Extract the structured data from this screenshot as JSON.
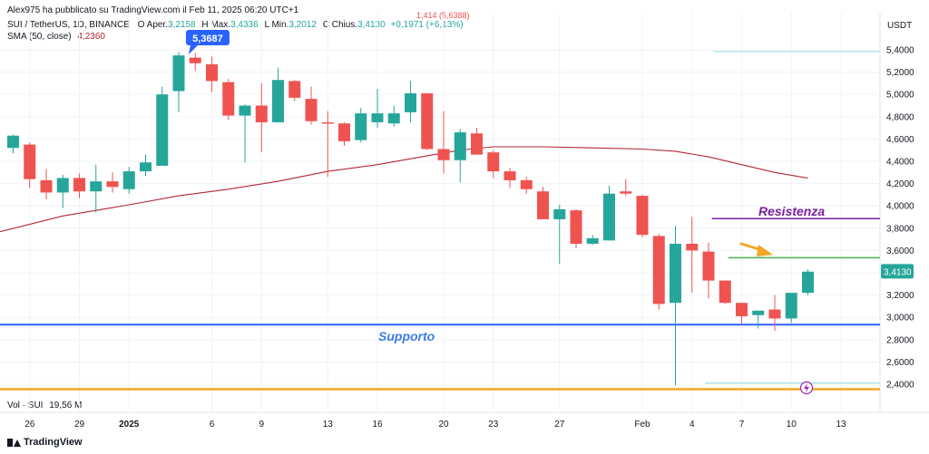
{
  "publisher_line": "Alex975 ha pubblicato su TradingView.com il Feb 11, 2025 06:20 UTC+1",
  "symbol_line": "SUI / TetherUS, 1D, BINANCE",
  "ohlc": {
    "open_label": "O",
    "open_name": "Aper.",
    "open": "3,2158",
    "high_label": "H",
    "high_name": "Max.",
    "high": "3,4336",
    "low_label": "L",
    "low_name": "Min.",
    "low": "3,2012",
    "close_label": "C",
    "close_name": "Chius.",
    "close": "3,4130",
    "change": "+0,1971 (+6,13%)"
  },
  "top_cut_text": "1,414 (5,6388)",
  "sma_label": "SMA (50, close)",
  "sma_value": "4,2360",
  "vol_label": "Vol · SUI",
  "vol_value": "19,56 M",
  "currency": "USDT",
  "logo_text": "TradingView",
  "colors": {
    "up": "#26a69a",
    "down": "#ef5350",
    "sma": "#b22833",
    "support": "#2962ff",
    "resistance": "#7b1fa2",
    "green_line": "#4caf50",
    "orange_line": "#f5a623",
    "cyan_line": "#a0e0e0"
  },
  "annotations": {
    "high_badge": "5,3687",
    "last_price_badge": "3,4130",
    "support_text": "Supporto",
    "resistance_text": "Resistenza",
    "arrow_icon": "orange-arrow",
    "lightning_icon": "lightning-icon"
  },
  "chart_data": {
    "type": "candlestick",
    "ylim": [
      2.32,
      5.72
    ],
    "y_ticks": [
      "5,4000",
      "5,2000",
      "5,0000",
      "4,8000",
      "4,6000",
      "4,4000",
      "4,2000",
      "4,0000",
      "3,8000",
      "3,6000",
      "3,4000",
      "3,2000",
      "3,0000",
      "2,8000",
      "2,6000",
      "2,4000"
    ],
    "y_tick_values": [
      5.4,
      5.2,
      5.0,
      4.8,
      4.6,
      4.4,
      4.2,
      4.0,
      3.8,
      3.6,
      3.4,
      3.2,
      3.0,
      2.8,
      2.6,
      2.4
    ],
    "x_ticks": [
      {
        "label": "26",
        "idx": 1
      },
      {
        "label": "29",
        "idx": 4
      },
      {
        "label": "2025",
        "idx": 7
      },
      {
        "label": "6",
        "idx": 12
      },
      {
        "label": "9",
        "idx": 15
      },
      {
        "label": "13",
        "idx": 19
      },
      {
        "label": "16",
        "idx": 22
      },
      {
        "label": "20",
        "idx": 26
      },
      {
        "label": "23",
        "idx": 29
      },
      {
        "label": "27",
        "idx": 33
      },
      {
        "label": "Feb",
        "idx": 38
      },
      {
        "label": "4",
        "idx": 41
      },
      {
        "label": "7",
        "idx": 44
      },
      {
        "label": "10",
        "idx": 47
      },
      {
        "label": "13",
        "idx": 50
      }
    ],
    "candles": [
      {
        "o": 4.52,
        "h": 4.64,
        "l": 4.47,
        "c": 4.63
      },
      {
        "o": 4.55,
        "h": 4.57,
        "l": 4.16,
        "c": 4.24
      },
      {
        "o": 4.23,
        "h": 4.33,
        "l": 4.06,
        "c": 4.12
      },
      {
        "o": 4.12,
        "h": 4.28,
        "l": 3.98,
        "c": 4.25
      },
      {
        "o": 4.25,
        "h": 4.29,
        "l": 4.07,
        "c": 4.13
      },
      {
        "o": 4.13,
        "h": 4.37,
        "l": 3.94,
        "c": 4.22
      },
      {
        "o": 4.22,
        "h": 4.3,
        "l": 4.12,
        "c": 4.17
      },
      {
        "o": 4.15,
        "h": 4.35,
        "l": 4.11,
        "c": 4.31
      },
      {
        "o": 4.31,
        "h": 4.46,
        "l": 4.27,
        "c": 4.39
      },
      {
        "o": 4.36,
        "h": 5.07,
        "l": 4.36,
        "c": 5.0
      },
      {
        "o": 5.03,
        "h": 5.38,
        "l": 4.84,
        "c": 5.35
      },
      {
        "o": 5.33,
        "h": 5.37,
        "l": 5.21,
        "c": 5.28
      },
      {
        "o": 5.27,
        "h": 5.34,
        "l": 5.02,
        "c": 5.12
      },
      {
        "o": 5.11,
        "h": 5.14,
        "l": 4.77,
        "c": 4.81
      },
      {
        "o": 4.81,
        "h": 4.91,
        "l": 4.39,
        "c": 4.9
      },
      {
        "o": 4.9,
        "h": 5.1,
        "l": 4.48,
        "c": 4.75
      },
      {
        "o": 4.75,
        "h": 5.24,
        "l": 4.75,
        "c": 5.13
      },
      {
        "o": 5.12,
        "h": 5.13,
        "l": 4.94,
        "c": 4.97
      },
      {
        "o": 4.96,
        "h": 5.07,
        "l": 4.73,
        "c": 4.76
      },
      {
        "o": 4.75,
        "h": 4.85,
        "l": 4.26,
        "c": 4.74
      },
      {
        "o": 4.74,
        "h": 4.75,
        "l": 4.54,
        "c": 4.58
      },
      {
        "o": 4.59,
        "h": 4.88,
        "l": 4.57,
        "c": 4.83
      },
      {
        "o": 4.75,
        "h": 5.05,
        "l": 4.7,
        "c": 4.83
      },
      {
        "o": 4.74,
        "h": 4.9,
        "l": 4.71,
        "c": 4.83
      },
      {
        "o": 4.84,
        "h": 5.12,
        "l": 4.75,
        "c": 5.01
      },
      {
        "o": 5.01,
        "h": 5.01,
        "l": 4.5,
        "c": 4.51
      },
      {
        "o": 4.51,
        "h": 4.85,
        "l": 4.29,
        "c": 4.41
      },
      {
        "o": 4.41,
        "h": 4.69,
        "l": 4.21,
        "c": 4.66
      },
      {
        "o": 4.65,
        "h": 4.7,
        "l": 4.46,
        "c": 4.46
      },
      {
        "o": 4.48,
        "h": 4.5,
        "l": 4.25,
        "c": 4.31
      },
      {
        "o": 4.31,
        "h": 4.34,
        "l": 4.16,
        "c": 4.23
      },
      {
        "o": 4.23,
        "h": 4.26,
        "l": 4.11,
        "c": 4.15
      },
      {
        "o": 4.13,
        "h": 4.17,
        "l": 3.88,
        "c": 3.88
      },
      {
        "o": 3.88,
        "h": 4.01,
        "l": 3.48,
        "c": 3.97
      },
      {
        "o": 3.96,
        "h": 3.97,
        "l": 3.62,
        "c": 3.66
      },
      {
        "o": 3.66,
        "h": 3.74,
        "l": 3.65,
        "c": 3.71
      },
      {
        "o": 3.69,
        "h": 4.18,
        "l": 3.69,
        "c": 4.11
      },
      {
        "o": 4.13,
        "h": 4.24,
        "l": 4.09,
        "c": 4.11
      },
      {
        "o": 4.09,
        "h": 4.1,
        "l": 3.72,
        "c": 3.74
      },
      {
        "o": 3.73,
        "h": 3.75,
        "l": 3.07,
        "c": 3.12
      },
      {
        "o": 3.13,
        "h": 3.82,
        "l": 2.39,
        "c": 3.66
      },
      {
        "o": 3.66,
        "h": 3.9,
        "l": 3.22,
        "c": 3.6
      },
      {
        "o": 3.59,
        "h": 3.67,
        "l": 3.17,
        "c": 3.33
      },
      {
        "o": 3.33,
        "h": 3.33,
        "l": 3.12,
        "c": 3.13
      },
      {
        "o": 3.13,
        "h": 3.13,
        "l": 2.94,
        "c": 3.01
      },
      {
        "o": 3.02,
        "h": 3.06,
        "l": 2.9,
        "c": 3.06
      },
      {
        "o": 3.07,
        "h": 3.2,
        "l": 2.88,
        "c": 2.99
      },
      {
        "o": 2.99,
        "h": 3.2,
        "l": 2.95,
        "c": 3.22
      },
      {
        "o": 3.22,
        "h": 3.43,
        "l": 3.2,
        "c": 3.41
      }
    ],
    "sma50": [
      [
        -1,
        3.76
      ],
      [
        3,
        3.91
      ],
      [
        7,
        4.01
      ],
      [
        10,
        4.09
      ],
      [
        13,
        4.15
      ],
      [
        16,
        4.22
      ],
      [
        19,
        4.31
      ],
      [
        22,
        4.37
      ],
      [
        25,
        4.45
      ],
      [
        27,
        4.5
      ],
      [
        29,
        4.53
      ],
      [
        32,
        4.53
      ],
      [
        35,
        4.52
      ],
      [
        38,
        4.51
      ],
      [
        40,
        4.49
      ],
      [
        42,
        4.44
      ],
      [
        44,
        4.37
      ],
      [
        46,
        4.3
      ],
      [
        48,
        4.25
      ]
    ],
    "levels": {
      "support": 2.935,
      "resistance": 3.886,
      "green_level": 3.535,
      "orange_bottom": 2.355,
      "cyan_top": 5.385,
      "cyan_bottom": 2.41
    }
  }
}
